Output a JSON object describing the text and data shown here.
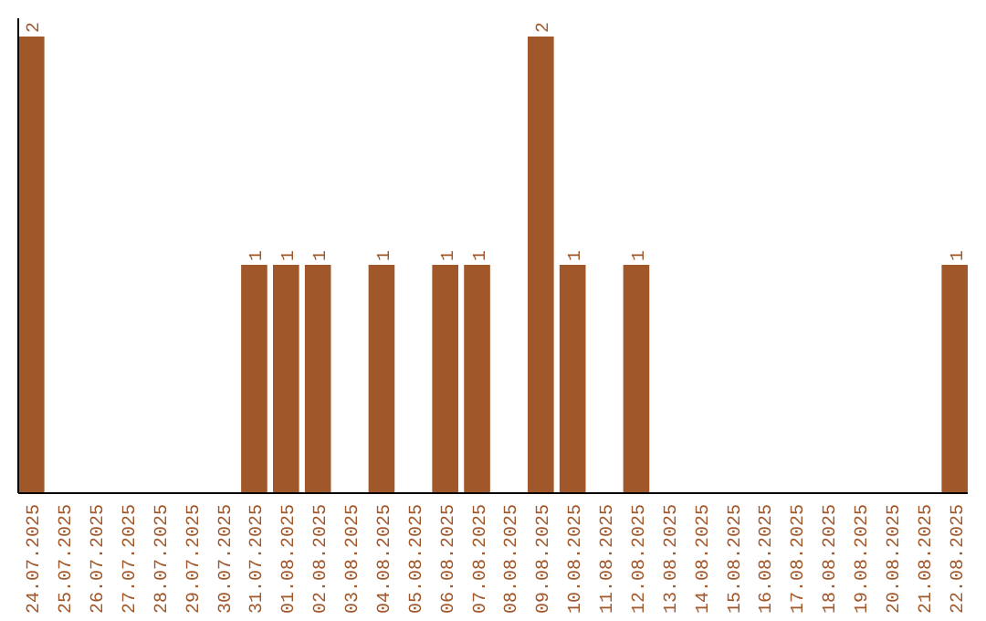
{
  "chart_data": {
    "type": "bar",
    "categories": [
      "24.07.2025",
      "25.07.2025",
      "26.07.2025",
      "27.07.2025",
      "28.07.2025",
      "29.07.2025",
      "30.07.2025",
      "31.07.2025",
      "01.08.2025",
      "02.08.2025",
      "03.08.2025",
      "04.08.2025",
      "05.08.2025",
      "06.08.2025",
      "07.08.2025",
      "08.08.2025",
      "09.08.2025",
      "10.08.2025",
      "11.08.2025",
      "12.08.2025",
      "13.08.2025",
      "14.08.2025",
      "15.08.2025",
      "16.08.2025",
      "17.08.2025",
      "18.08.2025",
      "19.08.2025",
      "20.08.2025",
      "21.08.2025",
      "22.08.2025"
    ],
    "values": [
      2,
      0,
      0,
      0,
      0,
      0,
      0,
      1,
      1,
      1,
      0,
      1,
      0,
      1,
      1,
      0,
      2,
      1,
      0,
      1,
      0,
      0,
      0,
      0,
      0,
      0,
      0,
      0,
      0,
      1
    ],
    "value_labels": [
      "2",
      null,
      null,
      null,
      null,
      null,
      null,
      "1",
      "1",
      "1",
      null,
      "1",
      null,
      "1",
      "1",
      null,
      "2",
      "1",
      null,
      "1",
      null,
      null,
      null,
      null,
      null,
      null,
      null,
      null,
      null,
      "1"
    ],
    "color": "#a0572a"
  }
}
